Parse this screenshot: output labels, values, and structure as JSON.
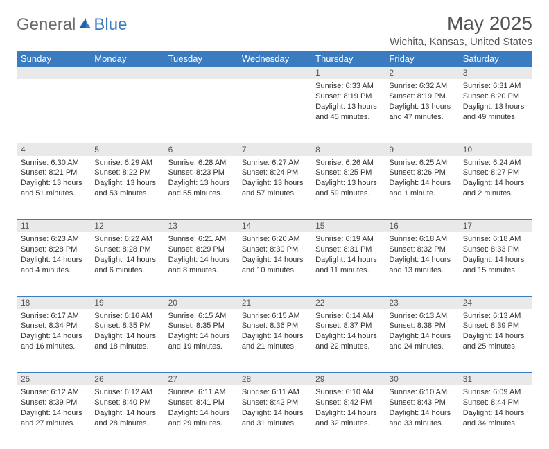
{
  "brand": {
    "textA": "General",
    "textB": "Blue"
  },
  "title": "May 2025",
  "location": "Wichita, Kansas, United States",
  "header_bg": "#3a7cbf",
  "header_fg": "#ffffff",
  "daynum_bg": "#e9e9e9",
  "rule_color": "#3a7cbf",
  "text_color": "#333333",
  "body_fontsize": 11,
  "header_fontsize": 13,
  "title_fontsize": 28,
  "location_fontsize": 15,
  "columns": [
    "Sunday",
    "Monday",
    "Tuesday",
    "Wednesday",
    "Thursday",
    "Friday",
    "Saturday"
  ],
  "weeks": [
    {
      "nums": [
        "",
        "",
        "",
        "",
        "1",
        "2",
        "3"
      ],
      "cells": [
        {},
        {},
        {},
        {},
        {
          "sunrise": "Sunrise: 6:33 AM",
          "sunset": "Sunset: 8:19 PM",
          "day1": "Daylight: 13 hours",
          "day2": "and 45 minutes."
        },
        {
          "sunrise": "Sunrise: 6:32 AM",
          "sunset": "Sunset: 8:19 PM",
          "day1": "Daylight: 13 hours",
          "day2": "and 47 minutes."
        },
        {
          "sunrise": "Sunrise: 6:31 AM",
          "sunset": "Sunset: 8:20 PM",
          "day1": "Daylight: 13 hours",
          "day2": "and 49 minutes."
        }
      ]
    },
    {
      "nums": [
        "4",
        "5",
        "6",
        "7",
        "8",
        "9",
        "10"
      ],
      "cells": [
        {
          "sunrise": "Sunrise: 6:30 AM",
          "sunset": "Sunset: 8:21 PM",
          "day1": "Daylight: 13 hours",
          "day2": "and 51 minutes."
        },
        {
          "sunrise": "Sunrise: 6:29 AM",
          "sunset": "Sunset: 8:22 PM",
          "day1": "Daylight: 13 hours",
          "day2": "and 53 minutes."
        },
        {
          "sunrise": "Sunrise: 6:28 AM",
          "sunset": "Sunset: 8:23 PM",
          "day1": "Daylight: 13 hours",
          "day2": "and 55 minutes."
        },
        {
          "sunrise": "Sunrise: 6:27 AM",
          "sunset": "Sunset: 8:24 PM",
          "day1": "Daylight: 13 hours",
          "day2": "and 57 minutes."
        },
        {
          "sunrise": "Sunrise: 6:26 AM",
          "sunset": "Sunset: 8:25 PM",
          "day1": "Daylight: 13 hours",
          "day2": "and 59 minutes."
        },
        {
          "sunrise": "Sunrise: 6:25 AM",
          "sunset": "Sunset: 8:26 PM",
          "day1": "Daylight: 14 hours",
          "day2": "and 1 minute."
        },
        {
          "sunrise": "Sunrise: 6:24 AM",
          "sunset": "Sunset: 8:27 PM",
          "day1": "Daylight: 14 hours",
          "day2": "and 2 minutes."
        }
      ]
    },
    {
      "nums": [
        "11",
        "12",
        "13",
        "14",
        "15",
        "16",
        "17"
      ],
      "cells": [
        {
          "sunrise": "Sunrise: 6:23 AM",
          "sunset": "Sunset: 8:28 PM",
          "day1": "Daylight: 14 hours",
          "day2": "and 4 minutes."
        },
        {
          "sunrise": "Sunrise: 6:22 AM",
          "sunset": "Sunset: 8:28 PM",
          "day1": "Daylight: 14 hours",
          "day2": "and 6 minutes."
        },
        {
          "sunrise": "Sunrise: 6:21 AM",
          "sunset": "Sunset: 8:29 PM",
          "day1": "Daylight: 14 hours",
          "day2": "and 8 minutes."
        },
        {
          "sunrise": "Sunrise: 6:20 AM",
          "sunset": "Sunset: 8:30 PM",
          "day1": "Daylight: 14 hours",
          "day2": "and 10 minutes."
        },
        {
          "sunrise": "Sunrise: 6:19 AM",
          "sunset": "Sunset: 8:31 PM",
          "day1": "Daylight: 14 hours",
          "day2": "and 11 minutes."
        },
        {
          "sunrise": "Sunrise: 6:18 AM",
          "sunset": "Sunset: 8:32 PM",
          "day1": "Daylight: 14 hours",
          "day2": "and 13 minutes."
        },
        {
          "sunrise": "Sunrise: 6:18 AM",
          "sunset": "Sunset: 8:33 PM",
          "day1": "Daylight: 14 hours",
          "day2": "and 15 minutes."
        }
      ]
    },
    {
      "nums": [
        "18",
        "19",
        "20",
        "21",
        "22",
        "23",
        "24"
      ],
      "cells": [
        {
          "sunrise": "Sunrise: 6:17 AM",
          "sunset": "Sunset: 8:34 PM",
          "day1": "Daylight: 14 hours",
          "day2": "and 16 minutes."
        },
        {
          "sunrise": "Sunrise: 6:16 AM",
          "sunset": "Sunset: 8:35 PM",
          "day1": "Daylight: 14 hours",
          "day2": "and 18 minutes."
        },
        {
          "sunrise": "Sunrise: 6:15 AM",
          "sunset": "Sunset: 8:35 PM",
          "day1": "Daylight: 14 hours",
          "day2": "and 19 minutes."
        },
        {
          "sunrise": "Sunrise: 6:15 AM",
          "sunset": "Sunset: 8:36 PM",
          "day1": "Daylight: 14 hours",
          "day2": "and 21 minutes."
        },
        {
          "sunrise": "Sunrise: 6:14 AM",
          "sunset": "Sunset: 8:37 PM",
          "day1": "Daylight: 14 hours",
          "day2": "and 22 minutes."
        },
        {
          "sunrise": "Sunrise: 6:13 AM",
          "sunset": "Sunset: 8:38 PM",
          "day1": "Daylight: 14 hours",
          "day2": "and 24 minutes."
        },
        {
          "sunrise": "Sunrise: 6:13 AM",
          "sunset": "Sunset: 8:39 PM",
          "day1": "Daylight: 14 hours",
          "day2": "and 25 minutes."
        }
      ]
    },
    {
      "nums": [
        "25",
        "26",
        "27",
        "28",
        "29",
        "30",
        "31"
      ],
      "cells": [
        {
          "sunrise": "Sunrise: 6:12 AM",
          "sunset": "Sunset: 8:39 PM",
          "day1": "Daylight: 14 hours",
          "day2": "and 27 minutes."
        },
        {
          "sunrise": "Sunrise: 6:12 AM",
          "sunset": "Sunset: 8:40 PM",
          "day1": "Daylight: 14 hours",
          "day2": "and 28 minutes."
        },
        {
          "sunrise": "Sunrise: 6:11 AM",
          "sunset": "Sunset: 8:41 PM",
          "day1": "Daylight: 14 hours",
          "day2": "and 29 minutes."
        },
        {
          "sunrise": "Sunrise: 6:11 AM",
          "sunset": "Sunset: 8:42 PM",
          "day1": "Daylight: 14 hours",
          "day2": "and 31 minutes."
        },
        {
          "sunrise": "Sunrise: 6:10 AM",
          "sunset": "Sunset: 8:42 PM",
          "day1": "Daylight: 14 hours",
          "day2": "and 32 minutes."
        },
        {
          "sunrise": "Sunrise: 6:10 AM",
          "sunset": "Sunset: 8:43 PM",
          "day1": "Daylight: 14 hours",
          "day2": "and 33 minutes."
        },
        {
          "sunrise": "Sunrise: 6:09 AM",
          "sunset": "Sunset: 8:44 PM",
          "day1": "Daylight: 14 hours",
          "day2": "and 34 minutes."
        }
      ]
    }
  ]
}
